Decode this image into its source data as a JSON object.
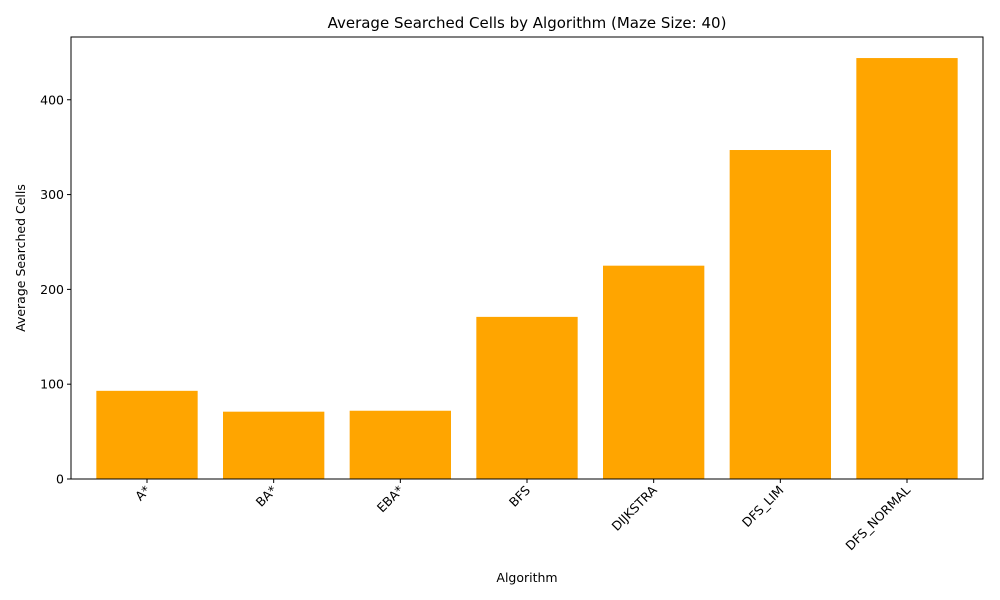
{
  "chart_data": {
    "type": "bar",
    "title": "Average Searched Cells by Algorithm (Maze Size: 40)",
    "xlabel": "Algorithm",
    "ylabel": "Average Searched Cells",
    "categories": [
      "A*",
      "BA*",
      "EBA*",
      "BFS",
      "DIJKSTRA",
      "DFS_LIM",
      "DFS_NORMAL"
    ],
    "values": [
      93,
      71,
      72,
      171,
      225,
      347,
      444
    ],
    "ylim": [
      0,
      466.2
    ],
    "yticks": [
      0,
      100,
      200,
      300,
      400
    ],
    "bar_color": "#ffa500",
    "grid": false,
    "legend": "none"
  }
}
